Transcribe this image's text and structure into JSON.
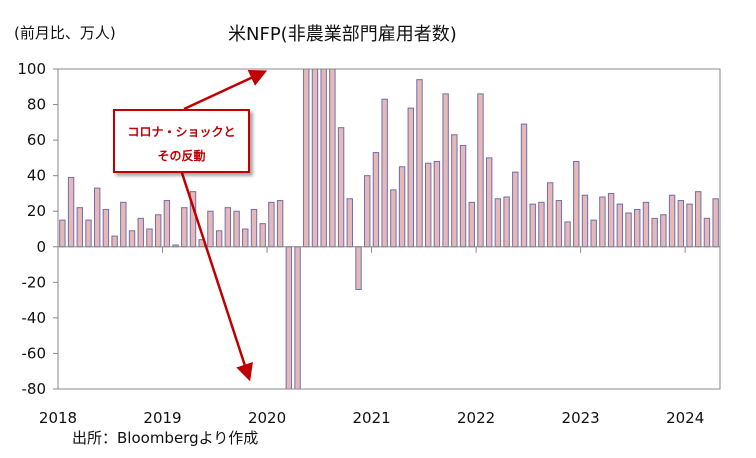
{
  "title": "米NFP(非農業部門雇用者数)",
  "unit_label": "(前月比、万人)",
  "source": "出所：Bloombergより作成",
  "annotation": {
    "line1": "コロナ・ショックと",
    "line2": "その反動"
  },
  "colors": {
    "bar_fill": "#e6b8b7",
    "bar_stroke": "#6f6fb0",
    "axis": "#888888",
    "annotation": "#c00000"
  },
  "chart_data": {
    "type": "bar",
    "title": "米NFP(非農業部門雇用者数)",
    "ylabel": "(前月比、万人)",
    "ylim": [
      -80,
      100
    ],
    "yticks": [
      100,
      80,
      60,
      40,
      20,
      0,
      -20,
      -40,
      -60,
      -80
    ],
    "year_labels": [
      "2018",
      "2019",
      "2020",
      "2021",
      "2022",
      "2023",
      "2024"
    ],
    "values": [
      15,
      39,
      22,
      15,
      33,
      21,
      6,
      25,
      9,
      16,
      10,
      18,
      26,
      1,
      22,
      31,
      4,
      20,
      9,
      22,
      20,
      10,
      21,
      13,
      25,
      26,
      -80,
      -80,
      100,
      100,
      100,
      100,
      67,
      27,
      -24,
      40,
      53,
      83,
      32,
      45,
      78,
      94,
      47,
      48,
      86,
      63,
      57,
      25,
      86,
      50,
      27,
      28,
      42,
      69,
      24,
      25,
      36,
      26,
      14,
      48,
      29,
      15,
      28,
      30,
      24,
      19,
      21,
      25,
      16,
      18,
      29,
      26,
      24,
      31,
      16,
      27
    ]
  }
}
